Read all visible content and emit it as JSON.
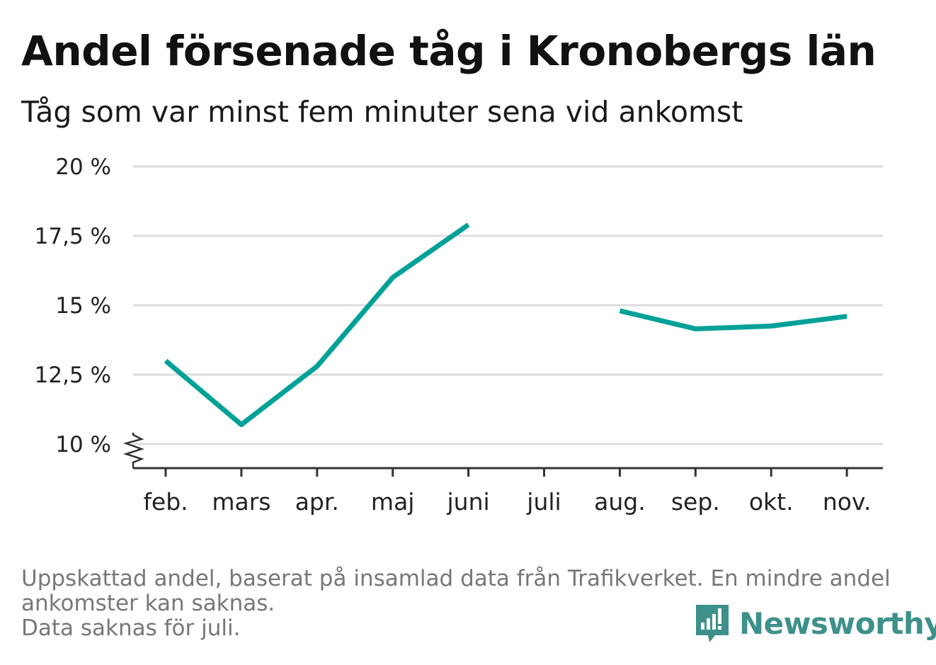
{
  "title": "Andel försenade tåg i Kronobergs län",
  "subtitle": "Tåg som var minst fem minuter sena vid ankomst",
  "footnote": [
    "Uppskattad andel, baserat på insamlad data från Trafikverket. En mindre andel",
    "ankomster kan saknas.",
    "Data saknas för juli."
  ],
  "brand": {
    "name": "Newsworthy",
    "color": "#3d918a"
  },
  "colors": {
    "line": "#00a198",
    "grid": "#dddddd",
    "axis": "#333333"
  },
  "chart_data": {
    "type": "line",
    "categories": [
      "feb.",
      "mars",
      "apr.",
      "maj",
      "juni",
      "juli",
      "aug.",
      "sep.",
      "okt.",
      "nov."
    ],
    "series": [
      {
        "values": [
          13.0,
          10.7,
          12.8,
          16.0,
          17.9,
          null,
          14.8,
          14.15,
          14.25,
          14.6
        ]
      }
    ],
    "ylim": [
      10,
      20
    ],
    "yticks": [
      10,
      12.5,
      15,
      17.5,
      20
    ],
    "ytick_labels": [
      "10 %",
      "12,5 %",
      "15 %",
      "17,5 %",
      "20 %"
    ],
    "xlabel": "",
    "ylabel": "",
    "grid": true,
    "axis_break": true
  }
}
